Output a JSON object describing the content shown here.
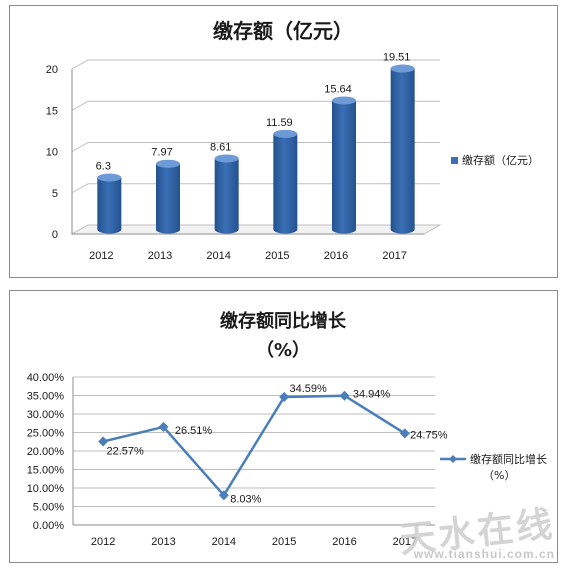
{
  "colors": {
    "bar_front": "#3a6fb5",
    "bar_dark": "#24528f",
    "bar_top": "#6d9bd8",
    "line": "#4a7ebb",
    "panel_border": "#8c8c8c",
    "grid": "#bfbfbf"
  },
  "watermark": {
    "text": "天水在线",
    "url": "www.tianshui.com.cn"
  },
  "chart_data": [
    {
      "type": "bar",
      "title": "缴存额（亿元）",
      "categories": [
        "2012",
        "2013",
        "2014",
        "2015",
        "2016",
        "2017"
      ],
      "series": [
        {
          "name": "缴存额（亿元）",
          "values": [
            6.3,
            7.97,
            8.61,
            11.59,
            15.64,
            19.51
          ]
        }
      ],
      "value_labels": [
        "6.3",
        "7.97",
        "8.61",
        "11.59",
        "15.64",
        "19.51"
      ],
      "y_ticks": [
        "0",
        "5",
        "10",
        "15",
        "20"
      ],
      "ylim": [
        0,
        20
      ],
      "grid": true,
      "style": "3d-cylinder",
      "legend_position": "right"
    },
    {
      "type": "line",
      "title": "缴存额同比增长",
      "subtitle": "（%）",
      "categories": [
        "2012",
        "2013",
        "2014",
        "2015",
        "2016",
        "2017"
      ],
      "series": [
        {
          "name": "缴存额同比增长",
          "name_line2": "（%）",
          "values": [
            22.57,
            26.51,
            8.03,
            34.59,
            34.94,
            24.75
          ]
        }
      ],
      "value_labels": [
        "22.57%",
        "26.51%",
        "8.03%",
        "34.59%",
        "34.94%",
        "24.75%"
      ],
      "y_ticks": [
        "0.00%",
        "5.00%",
        "10.00%",
        "15.00%",
        "20.00%",
        "25.00%",
        "30.00%",
        "35.00%",
        "40.00%"
      ],
      "ylim": [
        0,
        40
      ],
      "grid": true,
      "marker": "diamond",
      "legend_position": "right"
    }
  ]
}
